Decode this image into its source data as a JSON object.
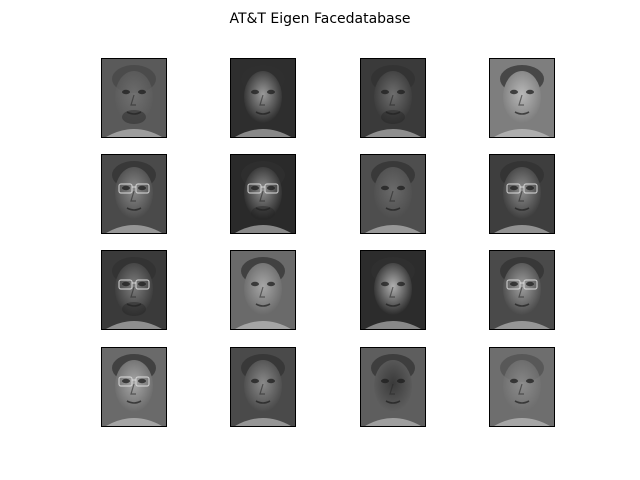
{
  "figure": {
    "title": "AT&T Eigen Facedatabase"
  },
  "grid": {
    "rows": 4,
    "cols": 4
  },
  "faces": [
    {
      "tone": "#7a7a7a",
      "bg": "#5a5a5a",
      "glasses": false,
      "beard": true,
      "ghost": true
    },
    {
      "tone": "#9a9a9a",
      "bg": "#2e2e2e",
      "glasses": false,
      "beard": false,
      "ghost": false
    },
    {
      "tone": "#6e6e6e",
      "bg": "#3a3a3a",
      "glasses": false,
      "beard": true,
      "ghost": false
    },
    {
      "tone": "#b8b8b8",
      "bg": "#7e7e7e",
      "glasses": false,
      "beard": false,
      "ghost": false
    },
    {
      "tone": "#8a8a8a",
      "bg": "#4a4a4a",
      "glasses": true,
      "beard": false,
      "ghost": false
    },
    {
      "tone": "#909090",
      "bg": "#2a2a2a",
      "glasses": true,
      "beard": true,
      "ghost": false
    },
    {
      "tone": "#6a6a6a",
      "bg": "#4e4e4e",
      "glasses": false,
      "beard": false,
      "ghost": false
    },
    {
      "tone": "#8e8e8e",
      "bg": "#3e3e3e",
      "glasses": true,
      "beard": false,
      "ghost": false
    },
    {
      "tone": "#7e7e7e",
      "bg": "#3a3a3a",
      "glasses": true,
      "beard": true,
      "ghost": false
    },
    {
      "tone": "#a6a6a6",
      "bg": "#6a6a6a",
      "glasses": false,
      "beard": false,
      "ghost": false
    },
    {
      "tone": "#b0b0b0",
      "bg": "#2c2c2c",
      "glasses": false,
      "beard": false,
      "ghost": false
    },
    {
      "tone": "#a0a0a0",
      "bg": "#4a4a4a",
      "glasses": true,
      "beard": false,
      "ghost": false
    },
    {
      "tone": "#a8a8a8",
      "bg": "#6a6a6a",
      "glasses": true,
      "beard": false,
      "ghost": false
    },
    {
      "tone": "#8a8a8a",
      "bg": "#4a4a4a",
      "glasses": false,
      "beard": false,
      "ghost": false
    },
    {
      "tone": "#3a3a3a",
      "bg": "#5e5e5e",
      "glasses": false,
      "beard": false,
      "ghost": false
    },
    {
      "tone": "#9a9a9a",
      "bg": "#6e6e6e",
      "glasses": false,
      "beard": false,
      "ghost": true
    }
  ]
}
